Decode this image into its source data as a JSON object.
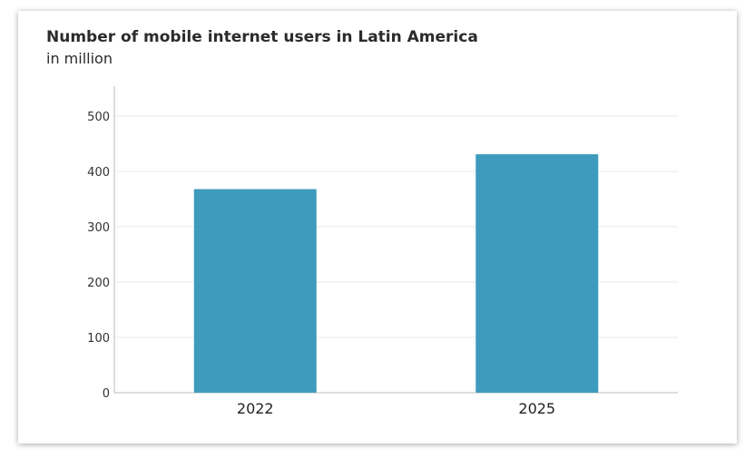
{
  "chart_data": {
    "type": "bar",
    "title": "Number of mobile internet users in Latin America",
    "subtitle": "in million",
    "categories": [
      "2022",
      "2025"
    ],
    "values": [
      368,
      431
    ],
    "ylim": [
      0,
      500
    ],
    "yticks": [
      "0",
      "100",
      "200",
      "300",
      "400",
      "500"
    ],
    "grid": true,
    "colors": {
      "bar": "#3e9bbd",
      "grid": "#e8e8e8",
      "axis": "#bdbdbd"
    }
  }
}
